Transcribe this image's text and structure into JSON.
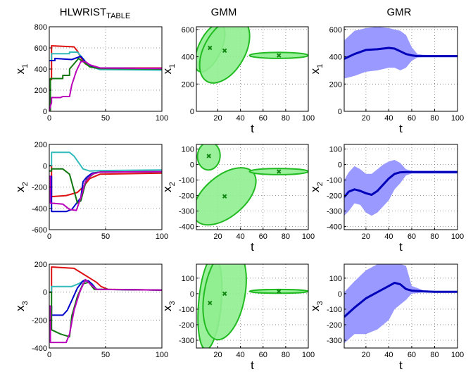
{
  "column_titles": [
    {
      "main": "HLWRIST",
      "sub": "TABLE"
    },
    {
      "main": "GMM",
      "sub": ""
    },
    {
      "main": "GMR",
      "sub": ""
    }
  ],
  "colors": {
    "series": [
      "#dd1111",
      "#33bbbb",
      "#0000cc",
      "#117711",
      "#bb00bb"
    ],
    "gmm_fill": "#90ee90",
    "gmm_edge": "#22bb22",
    "gmm_center": "#118811",
    "gmr_band": "#9999ff",
    "gmr_mean": "#0000bb"
  },
  "chart_data": [
    {
      "type": "line",
      "row": 0,
      "col": 0,
      "ylabel": {
        "main": "x",
        "sub": "1"
      },
      "xlabel": "",
      "xlim": [
        0,
        100
      ],
      "ylim": [
        0,
        800
      ],
      "xticks": [
        0,
        50,
        100
      ],
      "yticks": [
        0,
        200,
        400,
        600,
        800
      ],
      "grid": true,
      "series": [
        {
          "x": [
            0,
            2,
            2,
            22,
            25,
            28,
            32,
            37,
            45,
            100
          ],
          "y": [
            300,
            300,
            620,
            610,
            570,
            510,
            450,
            420,
            410,
            410
          ]
        },
        {
          "x": [
            0,
            2,
            2,
            18,
            18,
            25,
            30,
            35,
            45,
            100
          ],
          "y": [
            480,
            480,
            545,
            545,
            560,
            560,
            500,
            430,
            395,
            390
          ]
        },
        {
          "x": [
            0,
            5,
            5,
            20,
            28,
            32,
            37,
            45,
            100
          ],
          "y": [
            480,
            480,
            500,
            490,
            520,
            470,
            430,
            410,
            405
          ]
        },
        {
          "x": [
            0,
            1,
            1,
            12,
            12,
            18,
            18,
            22,
            26,
            30,
            36,
            45,
            100
          ],
          "y": [
            0,
            0,
            310,
            310,
            340,
            340,
            400,
            450,
            500,
            470,
            420,
            405,
            400
          ]
        },
        {
          "x": [
            0,
            0.5,
            1,
            2,
            2,
            10,
            12,
            18,
            20,
            24,
            28,
            32,
            36,
            45,
            100
          ],
          "y": [
            0,
            30,
            50,
            80,
            130,
            130,
            140,
            140,
            250,
            380,
            470,
            470,
            440,
            410,
            405
          ]
        }
      ]
    },
    {
      "type": "line",
      "row": 1,
      "col": 0,
      "ylabel": {
        "main": "x",
        "sub": "2"
      },
      "xlabel": "",
      "xlim": [
        0,
        100
      ],
      "ylim": [
        -600,
        200
      ],
      "xticks": [
        0,
        50,
        100
      ],
      "yticks": [
        -600,
        -400,
        -200,
        0,
        200
      ],
      "grid": true,
      "series": [
        {
          "x": [
            0,
            2,
            2,
            15,
            25,
            30,
            36,
            45,
            100
          ],
          "y": [
            0,
            0,
            -290,
            -280,
            -250,
            -200,
            -120,
            -80,
            -70
          ]
        },
        {
          "x": [
            0,
            2,
            2,
            18,
            22,
            26,
            30,
            36,
            45,
            100
          ],
          "y": [
            0,
            0,
            125,
            125,
            90,
            30,
            -30,
            -50,
            -45,
            -40
          ]
        },
        {
          "x": [
            0,
            2,
            2,
            15,
            20,
            28,
            30,
            33,
            38,
            45,
            100
          ],
          "y": [
            -100,
            -100,
            -430,
            -430,
            -410,
            -300,
            -150,
            -110,
            -70,
            -60,
            -55
          ]
        },
        {
          "x": [
            0,
            2,
            2,
            12,
            18,
            25,
            28,
            33,
            40,
            45,
            100
          ],
          "y": [
            -50,
            -50,
            -30,
            -30,
            -80,
            -350,
            -330,
            -130,
            -70,
            -60,
            -55
          ]
        },
        {
          "x": [
            0,
            1,
            1,
            12,
            18,
            24,
            28,
            32,
            38,
            45,
            100
          ],
          "y": [
            -100,
            -100,
            -350,
            -360,
            -410,
            -420,
            -300,
            -150,
            -80,
            -60,
            -55
          ]
        }
      ]
    },
    {
      "type": "line",
      "row": 2,
      "col": 0,
      "ylabel": {
        "main": "x",
        "sub": "3"
      },
      "xlabel": "",
      "xlim": [
        0,
        100
      ],
      "ylim": [
        -400,
        200
      ],
      "xticks": [
        0,
        50,
        100
      ],
      "yticks": [
        -400,
        -200,
        0,
        200
      ],
      "grid": true,
      "series": [
        {
          "x": [
            0,
            2,
            2,
            22,
            30,
            36,
            42,
            46,
            52,
            100
          ],
          "y": [
            0,
            0,
            180,
            170,
            130,
            100,
            70,
            40,
            20,
            15
          ]
        },
        {
          "x": [
            0,
            2,
            2,
            20,
            26,
            32,
            38,
            42,
            100
          ],
          "y": [
            0,
            0,
            40,
            40,
            60,
            90,
            60,
            20,
            15
          ]
        },
        {
          "x": [
            0,
            2,
            2,
            12,
            16,
            20,
            25,
            30,
            35,
            42,
            100
          ],
          "y": [
            -100,
            -100,
            -165,
            -165,
            -130,
            -60,
            30,
            80,
            80,
            20,
            15
          ]
        },
        {
          "x": [
            0,
            2,
            2,
            10,
            18,
            20,
            25,
            30,
            35,
            40,
            100
          ],
          "y": [
            0,
            0,
            -270,
            -300,
            -320,
            -170,
            -30,
            60,
            70,
            20,
            15
          ]
        },
        {
          "x": [
            0,
            1,
            1,
            15,
            18,
            22,
            27,
            32,
            36,
            42,
            100
          ],
          "y": [
            -100,
            -100,
            -360,
            -360,
            -300,
            -130,
            0,
            90,
            60,
            20,
            15
          ]
        }
      ]
    },
    {
      "type": "ellipse",
      "row": 0,
      "col": 1,
      "ylabel": {
        "main": "x",
        "sub": "1"
      },
      "xlabel": "t",
      "xlim": [
        1,
        100
      ],
      "ylim": [
        0,
        620
      ],
      "xticks": [
        20,
        40,
        60,
        80,
        100
      ],
      "yticks": [
        0,
        200,
        400,
        600
      ],
      "grid": true,
      "components": [
        {
          "mean": [
            13,
            465
          ],
          "rx": 10,
          "ry": 190,
          "angle": 25
        },
        {
          "mean": [
            26,
            445
          ],
          "rx": 18,
          "ry": 260,
          "angle": 30
        },
        {
          "mean": [
            74,
            410
          ],
          "rx": 26,
          "ry": 22,
          "angle": 0
        }
      ]
    },
    {
      "type": "ellipse",
      "row": 1,
      "col": 1,
      "ylabel": {
        "main": "x",
        "sub": "2"
      },
      "xlabel": "t",
      "xlim": [
        1,
        100
      ],
      "ylim": [
        -420,
        130
      ],
      "xticks": [
        20,
        40,
        60,
        80,
        100
      ],
      "yticks": [
        -400,
        -300,
        -200,
        -100,
        0,
        100
      ],
      "grid": true,
      "components": [
        {
          "mean": [
            12,
            55
          ],
          "rx": 10,
          "ry": 90,
          "angle": 5
        },
        {
          "mean": [
            26,
            -205
          ],
          "rx": 18,
          "ry": 240,
          "angle": 50
        },
        {
          "mean": [
            74,
            -45
          ],
          "rx": 26,
          "ry": 20,
          "angle": 0
        }
      ]
    },
    {
      "type": "ellipse",
      "row": 2,
      "col": 1,
      "ylabel": {
        "main": "x",
        "sub": "3"
      },
      "xlabel": "t",
      "xlim": [
        1,
        100
      ],
      "ylim": [
        -350,
        190
      ],
      "xticks": [
        20,
        40,
        60,
        80,
        100
      ],
      "yticks": [
        -300,
        -200,
        -100,
        0,
        100
      ],
      "grid": true,
      "components": [
        {
          "mean": [
            13,
            -60
          ],
          "rx": 10,
          "ry": 300,
          "angle": 5
        },
        {
          "mean": [
            26,
            0
          ],
          "rx": 18,
          "ry": 300,
          "angle": 10
        },
        {
          "mean": [
            74,
            15
          ],
          "rx": 26,
          "ry": 12,
          "angle": 0
        }
      ]
    },
    {
      "type": "area",
      "row": 0,
      "col": 2,
      "ylabel": {
        "main": "x",
        "sub": "1"
      },
      "xlabel": "t",
      "xlim": [
        1,
        100
      ],
      "ylim": [
        0,
        620
      ],
      "xticks": [
        20,
        40,
        60,
        80,
        100
      ],
      "yticks": [
        0,
        200,
        400,
        600
      ],
      "grid": true,
      "x": [
        1,
        10,
        20,
        30,
        40,
        45,
        50,
        55,
        60,
        65,
        70,
        80,
        90,
        100
      ],
      "mean": [
        385,
        420,
        450,
        455,
        465,
        460,
        440,
        420,
        410,
        405,
        405,
        405,
        405,
        405
      ],
      "upper": [
        520,
        590,
        610,
        620,
        610,
        600,
        590,
        560,
        470,
        420,
        415,
        413,
        413,
        413
      ],
      "lower": [
        240,
        260,
        290,
        300,
        320,
        320,
        300,
        320,
        370,
        395,
        397,
        397,
        397,
        397
      ]
    },
    {
      "type": "area",
      "row": 1,
      "col": 2,
      "ylabel": {
        "main": "x",
        "sub": "2"
      },
      "xlabel": "t",
      "xlim": [
        1,
        100
      ],
      "ylim": [
        -420,
        130
      ],
      "xticks": [
        20,
        40,
        60,
        80,
        100
      ],
      "yticks": [
        -400,
        -300,
        -200,
        -100,
        0,
        100
      ],
      "grid": true,
      "x": [
        1,
        5,
        10,
        15,
        20,
        25,
        30,
        35,
        40,
        45,
        50,
        55,
        60,
        70,
        80,
        90,
        100
      ],
      "mean": [
        -210,
        -175,
        -160,
        -170,
        -185,
        -195,
        -170,
        -130,
        -90,
        -60,
        -50,
        -48,
        -48,
        -48,
        -48,
        -48,
        -48
      ],
      "upper": [
        -100,
        -50,
        -10,
        -30,
        -60,
        -60,
        -30,
        0,
        20,
        30,
        10,
        -30,
        -40,
        -40,
        -40,
        -40,
        -40
      ],
      "lower": [
        -330,
        -300,
        -250,
        -260,
        -310,
        -330,
        -310,
        -270,
        -230,
        -160,
        -120,
        -70,
        -58,
        -58,
        -58,
        -58,
        -58
      ]
    },
    {
      "type": "area",
      "row": 2,
      "col": 2,
      "ylabel": {
        "main": "x",
        "sub": "3"
      },
      "xlabel": "t",
      "xlim": [
        1,
        100
      ],
      "ylim": [
        -350,
        190
      ],
      "xticks": [
        20,
        40,
        60,
        80,
        100
      ],
      "yticks": [
        -300,
        -200,
        -100,
        0,
        100
      ],
      "grid": true,
      "x": [
        1,
        10,
        20,
        30,
        40,
        45,
        50,
        55,
        60,
        70,
        80,
        90,
        100
      ],
      "mean": [
        -150,
        -90,
        -30,
        10,
        50,
        70,
        60,
        30,
        20,
        15,
        12,
        12,
        12
      ],
      "upper": [
        10,
        80,
        150,
        190,
        190,
        190,
        190,
        180,
        50,
        22,
        18,
        18,
        18
      ],
      "lower": [
        -320,
        -260,
        -260,
        -230,
        -170,
        -100,
        -70,
        -40,
        0,
        8,
        6,
        6,
        6
      ]
    }
  ]
}
